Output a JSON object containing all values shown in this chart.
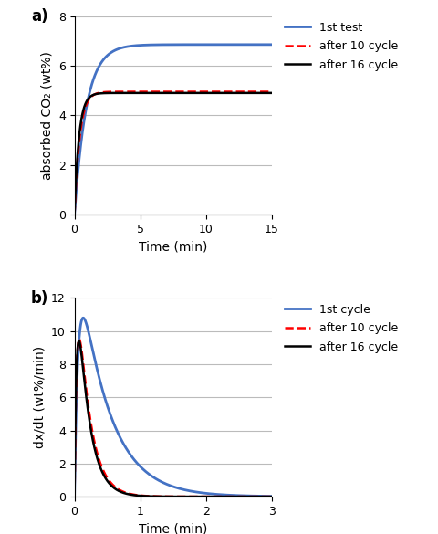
{
  "panel_a": {
    "title": "a)",
    "xlabel": "Time (min)",
    "ylabel": "absorbed CO₂ (wt%)",
    "xlim": [
      0,
      15
    ],
    "ylim": [
      0,
      8
    ],
    "yticks": [
      0,
      2,
      4,
      6,
      8
    ],
    "xticks": [
      0,
      5,
      10,
      15
    ],
    "series": [
      {
        "label": "1st test",
        "color": "#4472C4",
        "linestyle": "-",
        "linewidth": 2.0,
        "params": {
          "A": 6.85,
          "k": 1.1
        }
      },
      {
        "label": "after 10 cycle",
        "color": "#FF0000",
        "linestyle": "--",
        "linewidth": 1.8,
        "params": {
          "A": 4.95,
          "k": 2.5
        }
      },
      {
        "label": "after 16 cycle",
        "color": "#000000",
        "linestyle": "-",
        "linewidth": 1.8,
        "params": {
          "A": 4.9,
          "k": 2.9
        }
      }
    ]
  },
  "panel_b": {
    "title": "b)",
    "xlabel": "Time (min)",
    "ylabel": "dx/dt (wt%/min)",
    "xlim": [
      0,
      3
    ],
    "ylim": [
      0,
      12
    ],
    "yticks": [
      0,
      2,
      4,
      6,
      8,
      10,
      12
    ],
    "xticks": [
      0,
      1,
      2,
      3
    ],
    "series": [
      {
        "label": "1st cycle",
        "color": "#4472C4",
        "linestyle": "-",
        "linewidth": 2.0,
        "params": {
          "peak": 10.8,
          "t_peak": 0.4,
          "k_rise": 18,
          "k_fall": 2.2
        }
      },
      {
        "label": "after 10 cycle",
        "color": "#FF0000",
        "linestyle": "--",
        "linewidth": 1.8,
        "params": {
          "peak": 9.5,
          "t_peak": 0.35,
          "k_rise": 28,
          "k_fall": 5.5
        }
      },
      {
        "label": "after 16 cycle",
        "color": "#000000",
        "linestyle": "-",
        "linewidth": 1.8,
        "params": {
          "peak": 9.4,
          "t_peak": 0.34,
          "k_rise": 30,
          "k_fall": 5.8
        }
      }
    ]
  },
  "background_color": "#ffffff",
  "grid_color": "#bbbbbb",
  "legend_fontsize": 9,
  "label_fontsize": 10,
  "tick_fontsize": 9,
  "title_fontsize": 12
}
